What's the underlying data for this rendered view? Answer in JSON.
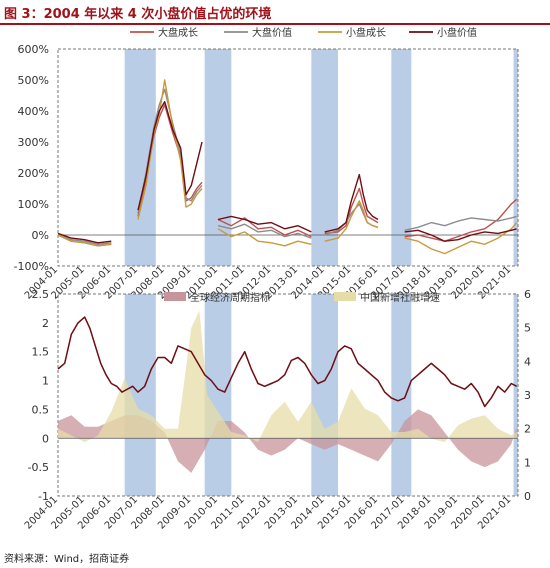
{
  "figure": {
    "title": "图 3：2004 年以来 4 次小盘价值占优的环境",
    "source": "资料来源：Wind，招商证券"
  },
  "colors": {
    "title_red": "#a0111a",
    "large_growth": "#c0504d",
    "large_value": "#8c8c8c",
    "small_growth": "#c89a3c",
    "small_value": "#6e0d14",
    "cycle_area": "#c8949b",
    "tsf_area": "#e6dca8",
    "shade": "#b9cde6"
  },
  "chart_data": [
    {
      "type": "line",
      "x_labels": [
        "2004-01",
        "2005-01",
        "2006-01",
        "2007-01",
        "2008-01",
        "2009-01",
        "2010-01",
        "2011-01",
        "2012-01",
        "2013-01",
        "2014-01",
        "2015-01",
        "2016-01",
        "2017-01",
        "2018-01",
        "2019-01",
        "2020-01",
        "2021-01"
      ],
      "y_ticks": [
        "600%",
        "500%",
        "400%",
        "300%",
        "200%",
        "100%",
        "0%",
        "-100%"
      ],
      "ylim": [
        -100,
        600
      ],
      "shaded_periods": [
        [
          "2006-07",
          "2007-09"
        ],
        [
          "2009-07",
          "2010-07"
        ],
        [
          "2013-07",
          "2014-07"
        ],
        [
          "2016-07",
          "2017-04"
        ],
        [
          "2021-02",
          "2021-04"
        ]
      ],
      "series": [
        {
          "name": "大盘成长",
          "color": "#c0504d",
          "x": [
            2004.0,
            2004.5,
            2005.0,
            2005.5,
            2006.0,
            2006.5,
            2007.0,
            2007.3,
            2007.6,
            2007.8,
            2008.0,
            2008.3,
            2008.6,
            2008.8,
            2009.0,
            2009.2,
            2009.4,
            2009.6,
            2010.0,
            2010.5,
            2011.0,
            2011.5,
            2012.0,
            2012.5,
            2013.0,
            2013.5,
            2013.6,
            2014.0,
            2014.5,
            2014.8,
            2015.0,
            2015.3,
            2015.45,
            2015.6,
            2015.8,
            2016.0,
            2016.6,
            2017.0,
            2017.5,
            2018.0,
            2018.5,
            2019.0,
            2019.5,
            2020.0,
            2020.5,
            2021.0,
            2021.2
          ],
          "y": [
            0,
            -20,
            -25,
            -35,
            -30,
            null,
            60,
            180,
            320,
            380,
            420,
            330,
            250,
            110,
            120,
            150,
            170,
            null,
            50,
            30,
            55,
            20,
            25,
            0,
            15,
            -5,
            null,
            5,
            10,
            30,
            90,
            150,
            100,
            60,
            50,
            40,
            null,
            -5,
            0,
            -10,
            -20,
            -5,
            10,
            20,
            50,
            100,
            115
          ]
        },
        {
          "name": "大盘价值",
          "color": "#8c8c8c",
          "x": [
            2004.0,
            2004.5,
            2005.0,
            2005.5,
            2006.0,
            2006.5,
            2007.0,
            2007.3,
            2007.6,
            2007.8,
            2008.0,
            2008.3,
            2008.6,
            2008.8,
            2009.0,
            2009.2,
            2009.4,
            2009.6,
            2010.0,
            2010.5,
            2011.0,
            2011.5,
            2012.0,
            2012.5,
            2013.0,
            2013.5,
            2013.6,
            2014.0,
            2014.5,
            2014.8,
            2015.0,
            2015.3,
            2015.45,
            2015.6,
            2015.8,
            2016.0,
            2016.6,
            2017.0,
            2017.5,
            2018.0,
            2018.5,
            2019.0,
            2019.5,
            2020.0,
            2020.5,
            2021.0,
            2021.2
          ],
          "y": [
            5,
            -15,
            -20,
            -30,
            -25,
            null,
            70,
            200,
            350,
            420,
            470,
            360,
            260,
            120,
            110,
            140,
            160,
            null,
            30,
            20,
            35,
            10,
            15,
            -5,
            5,
            -10,
            null,
            0,
            15,
            40,
            70,
            100,
            70,
            40,
            30,
            25,
            null,
            15,
            25,
            40,
            30,
            45,
            55,
            50,
            45,
            55,
            60
          ]
        },
        {
          "name": "小盘成长",
          "color": "#c89a3c",
          "x": [
            2004.0,
            2004.5,
            2005.0,
            2005.5,
            2006.0,
            2006.5,
            2007.0,
            2007.3,
            2007.6,
            2007.8,
            2008.0,
            2008.3,
            2008.6,
            2008.8,
            2009.0,
            2009.2,
            2009.4,
            2009.6,
            2010.0,
            2010.5,
            2011.0,
            2011.5,
            2012.0,
            2012.5,
            2013.0,
            2013.5,
            2013.6,
            2014.0,
            2014.5,
            2014.8,
            2015.0,
            2015.3,
            2015.45,
            2015.6,
            2015.8,
            2016.0,
            2016.6,
            2017.0,
            2017.5,
            2018.0,
            2018.5,
            2019.0,
            2019.5,
            2020.0,
            2020.5,
            2021.0,
            2021.2
          ],
          "y": [
            0,
            -20,
            -25,
            -35,
            -30,
            null,
            50,
            160,
            330,
            390,
            500,
            350,
            240,
            90,
            100,
            130,
            150,
            null,
            20,
            -5,
            10,
            -20,
            -25,
            -35,
            -20,
            -30,
            null,
            -20,
            -10,
            20,
            60,
            110,
            80,
            40,
            30,
            25,
            null,
            -10,
            -20,
            -45,
            -60,
            -40,
            -20,
            -30,
            -10,
            20,
            40
          ]
        },
        {
          "name": "小盘价值",
          "color": "#6e0d14",
          "x": [
            2004.0,
            2004.5,
            2005.0,
            2005.5,
            2006.0,
            2006.5,
            2007.0,
            2007.3,
            2007.6,
            2007.8,
            2008.0,
            2008.3,
            2008.6,
            2008.8,
            2009.0,
            2009.2,
            2009.4,
            2009.6,
            2010.0,
            2010.5,
            2011.0,
            2011.5,
            2012.0,
            2012.5,
            2013.0,
            2013.5,
            2013.6,
            2014.0,
            2014.5,
            2014.8,
            2015.0,
            2015.3,
            2015.45,
            2015.6,
            2015.8,
            2016.0,
            2016.6,
            2017.0,
            2017.5,
            2018.0,
            2018.5,
            2019.0,
            2019.5,
            2020.0,
            2020.5,
            2021.0,
            2021.2
          ],
          "y": [
            5,
            -10,
            -15,
            -25,
            -20,
            null,
            80,
            190,
            340,
            400,
            430,
            340,
            280,
            130,
            160,
            230,
            300,
            null,
            50,
            60,
            50,
            35,
            40,
            20,
            30,
            10,
            null,
            10,
            20,
            40,
            110,
            195,
            130,
            80,
            60,
            50,
            null,
            10,
            15,
            0,
            -20,
            -15,
            0,
            10,
            5,
            15,
            20
          ]
        }
      ]
    },
    {
      "type": "area",
      "x_labels": [
        "2004-01",
        "2005-01",
        "2006-01",
        "2007-01",
        "2008-01",
        "2009-01",
        "2010-01",
        "2011-01",
        "2012-01",
        "2013-01",
        "2014-01",
        "2015-01",
        "2016-01",
        "2017-01",
        "2018-01",
        "2019-01",
        "2020-01",
        "2021-01"
      ],
      "y_ticks_left": [
        "2.5",
        "2",
        "1.5",
        "1",
        "0.5",
        "0",
        "-0.5",
        "-1"
      ],
      "ylim_left": [
        -1,
        2.5
      ],
      "y_ticks_right": [
        "6",
        "5",
        "4",
        "3",
        "2",
        "1",
        "0"
      ],
      "ylim_right": [
        0,
        6
      ],
      "series": [
        {
          "name": "全球经济周期指标",
          "axis": "left",
          "color": "#c8949b",
          "x": [
            2004.0,
            2004.5,
            2005.0,
            2005.5,
            2006.0,
            2006.5,
            2007.0,
            2007.5,
            2008.0,
            2008.5,
            2009.0,
            2009.5,
            2010.0,
            2010.5,
            2011.0,
            2011.5,
            2012.0,
            2012.5,
            2013.0,
            2013.5,
            2014.0,
            2014.5,
            2015.0,
            2015.5,
            2016.0,
            2016.5,
            2017.0,
            2017.5,
            2018.0,
            2018.5,
            2019.0,
            2019.5,
            2020.0,
            2020.5,
            2021.0,
            2021.2
          ],
          "y": [
            0.3,
            0.4,
            0.2,
            0.2,
            0.3,
            0.4,
            0.4,
            0.3,
            0.1,
            -0.4,
            -0.6,
            -0.2,
            0.3,
            0.3,
            0.1,
            -0.2,
            -0.3,
            -0.2,
            0.0,
            -0.1,
            -0.2,
            -0.1,
            -0.2,
            -0.3,
            -0.4,
            -0.1,
            0.3,
            0.5,
            0.4,
            0.1,
            -0.2,
            -0.4,
            -0.5,
            -0.4,
            -0.1,
            0.2
          ]
        },
        {
          "name": "中国新增社融增速",
          "axis": "right",
          "color": "#e6dca8",
          "x": [
            2004.0,
            2004.5,
            2005.0,
            2005.5,
            2006.0,
            2006.5,
            2007.0,
            2007.5,
            2008.0,
            2008.5,
            2009.0,
            2009.3,
            2009.6,
            2010.0,
            2010.5,
            2011.0,
            2011.5,
            2012.0,
            2012.5,
            2013.0,
            2013.5,
            2014.0,
            2014.5,
            2015.0,
            2015.5,
            2016.0,
            2016.5,
            2017.0,
            2017.5,
            2018.0,
            2018.5,
            2019.0,
            2019.5,
            2020.0,
            2020.5,
            2021.0,
            2021.2
          ],
          "y": [
            2.0,
            1.8,
            1.6,
            1.8,
            2.5,
            3.5,
            2.6,
            2.4,
            2.0,
            2.0,
            5.0,
            5.5,
            3.0,
            2.5,
            1.9,
            1.8,
            1.6,
            2.4,
            2.8,
            2.2,
            2.8,
            2.0,
            2.2,
            3.2,
            2.6,
            2.4,
            1.9,
            1.9,
            2.0,
            1.7,
            1.6,
            2.1,
            2.3,
            2.4,
            2.0,
            1.8,
            1.9
          ]
        },
        {
          "name": "line",
          "axis": "left",
          "color": "#6e0d14",
          "x": [
            2004.0,
            2004.25,
            2004.5,
            2004.75,
            2005.0,
            2005.2,
            2005.4,
            2005.6,
            2005.8,
            2006.0,
            2006.2,
            2006.4,
            2006.6,
            2006.8,
            2007.0,
            2007.25,
            2007.5,
            2007.75,
            2008.0,
            2008.25,
            2008.5,
            2008.75,
            2009.0,
            2009.25,
            2009.5,
            2009.75,
            2010.0,
            2010.25,
            2010.5,
            2010.75,
            2011.0,
            2011.25,
            2011.5,
            2011.75,
            2012.0,
            2012.25,
            2012.5,
            2012.75,
            2013.0,
            2013.25,
            2013.5,
            2013.75,
            2014.0,
            2014.25,
            2014.5,
            2014.75,
            2015.0,
            2015.25,
            2015.5,
            2015.75,
            2016.0,
            2016.25,
            2016.5,
            2016.75,
            2017.0,
            2017.25,
            2017.5,
            2017.75,
            2018.0,
            2018.25,
            2018.5,
            2018.75,
            2019.0,
            2019.25,
            2019.5,
            2019.75,
            2020.0,
            2020.25,
            2020.5,
            2020.75,
            2021.0,
            2021.2
          ],
          "y": [
            1.2,
            1.3,
            1.8,
            2.0,
            2.1,
            1.9,
            1.6,
            1.3,
            1.1,
            0.95,
            0.9,
            0.8,
            0.85,
            0.9,
            0.8,
            0.9,
            1.2,
            1.4,
            1.4,
            1.3,
            1.6,
            1.55,
            1.5,
            1.3,
            1.1,
            1.0,
            0.85,
            0.8,
            1.05,
            1.3,
            1.5,
            1.2,
            0.95,
            0.9,
            0.95,
            1.0,
            1.1,
            1.35,
            1.4,
            1.3,
            1.1,
            0.95,
            1.0,
            1.2,
            1.5,
            1.6,
            1.55,
            1.3,
            1.2,
            1.1,
            1.0,
            0.8,
            0.7,
            0.65,
            0.7,
            1.0,
            1.1,
            1.2,
            1.3,
            1.2,
            1.1,
            0.95,
            0.9,
            0.85,
            0.95,
            0.8,
            0.55,
            0.7,
            0.9,
            0.8,
            0.95,
            0.9
          ]
        }
      ]
    }
  ]
}
